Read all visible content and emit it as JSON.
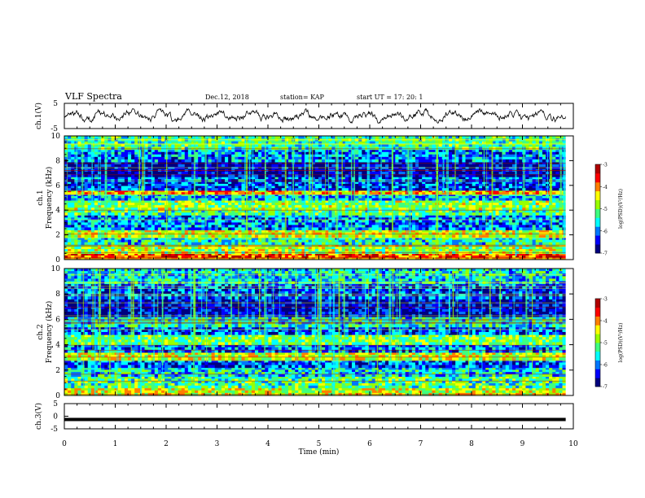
{
  "header": {
    "title": "VLF Spectra",
    "date": "Dec.12, 2018",
    "station": "station= KAP",
    "start": "start  UT =   17: 20: 1"
  },
  "colors": {
    "spectrogram": [
      "#00007f",
      "#0000ff",
      "#0077ff",
      "#00ffff",
      "#3fff7f",
      "#99ff00",
      "#ffff00",
      "#ff7f00",
      "#ff0000",
      "#b00000"
    ]
  },
  "chart_data": [
    {
      "type": "line",
      "ylabel": "ch.1(V)",
      "ylim": [
        -5,
        5
      ],
      "yticks": [
        "5",
        "-5"
      ],
      "xlim": [
        0,
        10
      ],
      "note": "noisy waveform oscillating about 0 V within roughly ±2.5 V from 0 to 9.8 min"
    },
    {
      "type": "heatmap",
      "ylabel_top": "ch.1",
      "ylabel": "Frequency (kHz)",
      "ylim": [
        0,
        10
      ],
      "yticks": [
        "0",
        "2",
        "4",
        "6",
        "8",
        "10"
      ],
      "xlim": [
        0,
        10
      ],
      "colorbar": {
        "label": "log(PSD)(V²/Hz)",
        "range": [
          -7,
          -3
        ],
        "ticks": [
          "-3",
          "-4",
          "-5",
          "-6",
          "-7"
        ]
      },
      "bands": [
        {
          "from": 0.0,
          "to": 0.5,
          "level": -3.7
        },
        {
          "from": 0.5,
          "to": 1.2,
          "level": -4.8
        },
        {
          "from": 1.2,
          "to": 1.8,
          "level": -5.5
        },
        {
          "from": 1.8,
          "to": 2.4,
          "level": -4.6
        },
        {
          "from": 2.4,
          "to": 3.6,
          "level": -6.0
        },
        {
          "from": 3.6,
          "to": 4.0,
          "level": -5.2
        },
        {
          "from": 4.0,
          "to": 4.8,
          "level": -4.9
        },
        {
          "from": 4.8,
          "to": 5.3,
          "level": -5.8
        },
        {
          "from": 5.3,
          "to": 5.6,
          "level": -4.2
        },
        {
          "from": 5.6,
          "to": 6.3,
          "level": -6.3
        },
        {
          "from": 6.3,
          "to": 6.7,
          "level": -6.1
        },
        {
          "from": 6.7,
          "to": 7.9,
          "level": -6.7
        },
        {
          "from": 7.9,
          "to": 8.9,
          "level": -6.0
        },
        {
          "from": 8.9,
          "to": 10.0,
          "level": -5.3
        }
      ]
    },
    {
      "type": "heatmap",
      "ylabel_top": "ch.2",
      "ylabel": "Frequency (kHz)",
      "ylim": [
        0,
        10
      ],
      "yticks": [
        "0",
        "2",
        "4",
        "6",
        "8",
        "10"
      ],
      "xlim": [
        0,
        10
      ],
      "colorbar": {
        "label": "log(PSD)(V²/Hz)",
        "range": [
          -7,
          -3
        ],
        "ticks": [
          "-3",
          "-4",
          "-5",
          "-6",
          "-7"
        ]
      },
      "bands": [
        {
          "from": 0.0,
          "to": 0.6,
          "level": -4.6
        },
        {
          "from": 0.6,
          "to": 1.5,
          "level": -5.2
        },
        {
          "from": 1.5,
          "to": 2.2,
          "level": -5.6
        },
        {
          "from": 2.2,
          "to": 2.8,
          "level": -6.2
        },
        {
          "from": 2.8,
          "to": 3.4,
          "level": -4.6
        },
        {
          "from": 3.4,
          "to": 4.0,
          "level": -6.0
        },
        {
          "from": 4.0,
          "to": 4.8,
          "level": -5.0
        },
        {
          "from": 4.8,
          "to": 5.4,
          "level": -6.2
        },
        {
          "from": 5.4,
          "to": 6.2,
          "level": -5.5
        },
        {
          "from": 6.2,
          "to": 7.6,
          "level": -6.6
        },
        {
          "from": 7.6,
          "to": 8.8,
          "level": -6.2
        },
        {
          "from": 8.8,
          "to": 10.0,
          "level": -5.6
        }
      ]
    },
    {
      "type": "line",
      "ylabel": "ch.3(V)",
      "ylim": [
        -5,
        5
      ],
      "yticks": [
        "5",
        "0",
        "-5"
      ],
      "xlim": [
        0,
        10
      ],
      "xlabel": "Time (min)",
      "xticks": [
        "0",
        "1",
        "2",
        "3",
        "4",
        "5",
        "6",
        "7",
        "8",
        "9",
        "10"
      ],
      "note": "flat thick trace at about -1.3 V"
    }
  ]
}
